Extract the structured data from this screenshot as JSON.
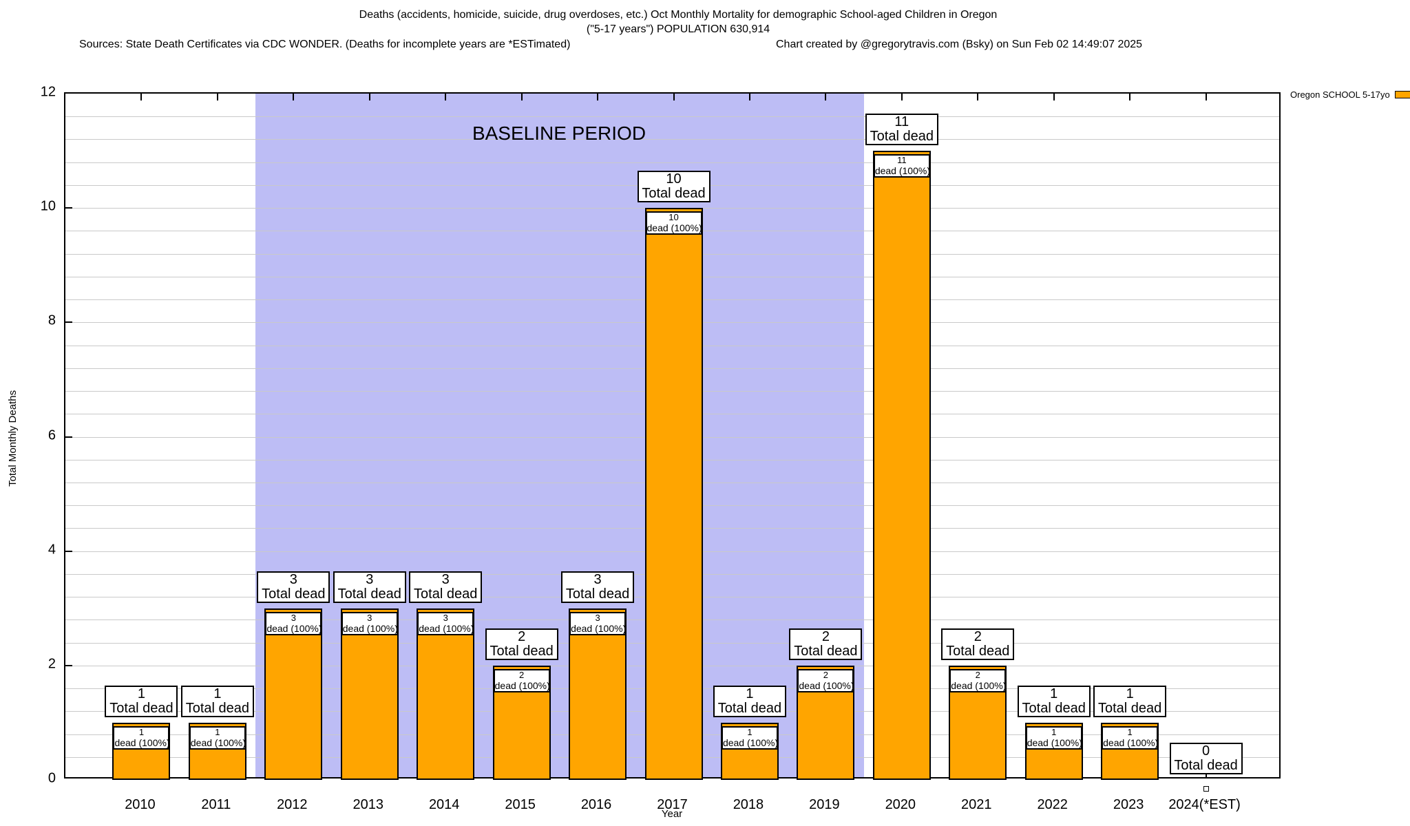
{
  "header": {
    "title_line1": "Deaths (accidents, homicide, suicide, drug overdoses, etc.) Oct Monthly Mortality for demographic School-aged Children in Oregon",
    "title_line2": "(\"5-17 years\") POPULATION 630,914",
    "sources": "Sources: State Death Certificates via CDC WONDER. (Deaths for incomplete years are *ESTimated)",
    "credit": "Chart created by @gregorytravis.com (Bsky) on Sun Feb 02 14:49:07 2025"
  },
  "legend": {
    "label": "Oregon SCHOOL 5-17yo",
    "swatch_color": "#FFA500"
  },
  "chart_data": {
    "type": "bar",
    "title": "Deaths (accidents, homicide, suicide, drug overdoses, etc.) Oct Monthly Mortality for demographic School-aged Children in Oregon (\"5-17 years\") POPULATION 630,914",
    "xlabel": "Year",
    "ylabel": "Total Monthly Deaths",
    "ylim": [
      0,
      12
    ],
    "ytick_interval": 2,
    "minor_grid_interval": 0.4,
    "grid": "horizontal-minor",
    "legend_position": "top-right-outside",
    "categories": [
      "2010",
      "2011",
      "2012",
      "2013",
      "2014",
      "2015",
      "2016",
      "2017",
      "2018",
      "2019",
      "2020",
      "2021",
      "2022",
      "2023",
      "2024(*EST)"
    ],
    "values": [
      1,
      1,
      3,
      3,
      3,
      2,
      3,
      10,
      1,
      2,
      11,
      2,
      1,
      1,
      0
    ],
    "bar_color": "#FFA500",
    "bar_border_color": "#000000",
    "top_label_suffix": "Total dead",
    "inner_label_suffix": "dead (100%)",
    "baseline_region": {
      "label": "BASELINE PERIOD",
      "from_category": "2012",
      "to_category": "2019",
      "color": "#bdbdf5"
    }
  }
}
